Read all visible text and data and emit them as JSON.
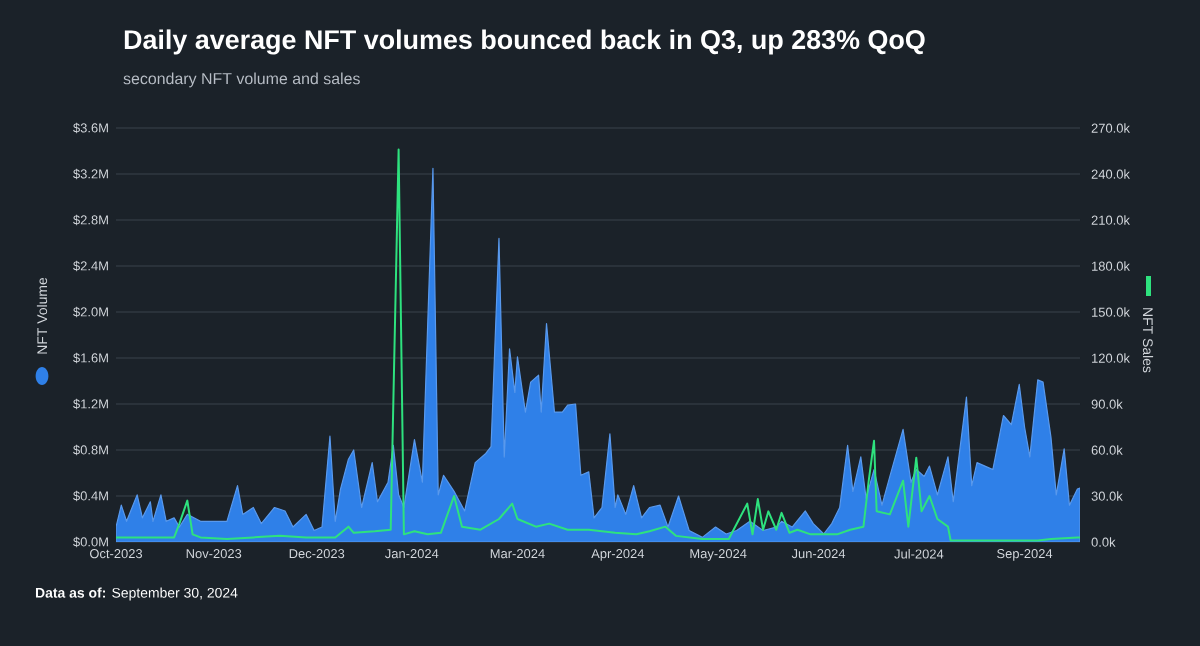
{
  "chart_data": {
    "type": "area",
    "title": "Daily average NFT volumes bounced back in Q3, up 283% QoQ",
    "subtitle": "secondary NFT volume and sales",
    "ylabel": "NFT Volume",
    "y2label": "NFT Sales",
    "annotations": [
      "**Data as of:** September 30, 2024"
    ],
    "grid": "y",
    "xlim": [
      "2023-10-01",
      "2024-09-30"
    ],
    "xticks": [
      {
        "value": "2023-10-01",
        "label": "Oct-2023"
      },
      {
        "value": "2023-11-07",
        "label": "Nov-2023"
      },
      {
        "value": "2023-12-16",
        "label": "Dec-2023"
      },
      {
        "value": "2024-01-21",
        "label": "Jan-2024"
      },
      {
        "value": "2024-03-01",
        "label": "Mar-2024"
      },
      {
        "value": "2024-04-08",
        "label": "Apr-2024"
      },
      {
        "value": "2024-05-16",
        "label": "May-2024"
      },
      {
        "value": "2024-06-23",
        "label": "Jun-2024"
      },
      {
        "value": "2024-07-31",
        "label": "Jul-2024"
      },
      {
        "value": "2024-09-09",
        "label": "Sep-2024"
      }
    ],
    "ylim": [
      0,
      3.6
    ],
    "yticks": [
      {
        "value": 0,
        "label": "$0.0M"
      },
      {
        "value": 0.4,
        "label": "$0.4M"
      },
      {
        "value": 0.8,
        "label": "$0.8M"
      },
      {
        "value": 1.2,
        "label": "$1.2M"
      },
      {
        "value": 1.6,
        "label": "$1.6M"
      },
      {
        "value": 2.0,
        "label": "$2.0M"
      },
      {
        "value": 2.4,
        "label": "$2.4M"
      },
      {
        "value": 2.8,
        "label": "$2.8M"
      },
      {
        "value": 3.2,
        "label": "$3.2M"
      },
      {
        "value": 3.6,
        "label": "$3.6M"
      }
    ],
    "y2lim": [
      0,
      270
    ],
    "y2ticks": [
      {
        "value": 0,
        "label": "0.0k"
      },
      {
        "value": 30,
        "label": "30.0k"
      },
      {
        "value": 60,
        "label": "60.0k"
      },
      {
        "value": 90,
        "label": "90.0k"
      },
      {
        "value": 120,
        "label": "120.0k"
      },
      {
        "value": 150,
        "label": "150.0k"
      },
      {
        "value": 180,
        "label": "180.0k"
      },
      {
        "value": 210,
        "label": "210.0k"
      },
      {
        "value": 240,
        "label": "240.0k"
      },
      {
        "value": 270,
        "label": "270.0k"
      }
    ],
    "series": [
      {
        "color": "#2f80e8",
        "x": [
          "2023-10-01",
          "2023-10-03",
          "2023-10-05",
          "2023-10-09",
          "2023-10-11",
          "2023-10-14",
          "2023-10-15",
          "2023-10-18",
          "2023-10-20",
          "2023-10-23",
          "2023-10-25",
          "2023-10-28",
          "2023-11-02",
          "2023-11-07",
          "2023-11-12",
          "2023-11-16",
          "2023-11-18",
          "2023-11-22",
          "2023-11-25",
          "2023-11-30",
          "2023-12-04",
          "2023-12-07",
          "2023-12-12",
          "2023-12-15",
          "2023-12-18",
          "2023-12-21",
          "2023-12-23",
          "2023-12-25",
          "2023-12-28",
          "2023-12-30",
          "2024-01-02",
          "2024-01-06",
          "2024-01-08",
          "2024-01-12",
          "2024-01-14",
          "2024-01-16",
          "2024-01-18",
          "2024-01-22",
          "2024-01-25",
          "2024-01-29",
          "2024-01-31",
          "2024-02-02",
          "2024-02-06",
          "2024-02-10",
          "2024-02-14",
          "2024-02-18",
          "2024-02-20",
          "2024-02-23",
          "2024-02-25",
          "2024-02-27",
          "2024-02-29",
          "2024-03-01",
          "2024-03-04",
          "2024-03-06",
          "2024-03-09",
          "2024-03-10",
          "2024-03-12",
          "2024-03-15",
          "2024-03-18",
          "2024-03-20",
          "2024-03-23",
          "2024-03-25",
          "2024-03-28",
          "2024-03-30",
          "2024-04-02",
          "2024-04-05",
          "2024-04-07",
          "2024-04-08",
          "2024-04-11",
          "2024-04-14",
          "2024-04-17",
          "2024-04-20",
          "2024-04-24",
          "2024-04-27",
          "2024-05-01",
          "2024-05-05",
          "2024-05-10",
          "2024-05-15",
          "2024-05-19",
          "2024-05-23",
          "2024-05-28",
          "2024-06-02",
          "2024-06-07",
          "2024-06-09",
          "2024-06-13",
          "2024-06-18",
          "2024-06-21",
          "2024-06-25",
          "2024-06-28",
          "2024-07-01",
          "2024-07-04",
          "2024-07-06",
          "2024-07-09",
          "2024-07-11",
          "2024-07-14",
          "2024-07-17",
          "2024-07-20",
          "2024-07-25",
          "2024-07-28",
          "2024-07-30",
          "2024-08-02",
          "2024-08-04",
          "2024-08-07",
          "2024-08-11",
          "2024-08-13",
          "2024-08-18",
          "2024-08-20",
          "2024-08-22",
          "2024-08-25",
          "2024-08-28",
          "2024-09-01",
          "2024-09-04",
          "2024-09-07",
          "2024-09-09",
          "2024-09-11",
          "2024-09-14",
          "2024-09-16",
          "2024-09-19",
          "2024-09-21",
          "2024-09-24",
          "2024-09-26",
          "2024-09-29",
          "2024-09-30"
        ],
        "values": [
          0.13,
          0.32,
          0.18,
          0.41,
          0.21,
          0.35,
          0.18,
          0.41,
          0.18,
          0.21,
          0.13,
          0.24,
          0.18,
          0.18,
          0.18,
          0.49,
          0.24,
          0.3,
          0.16,
          0.3,
          0.27,
          0.13,
          0.24,
          0.1,
          0.13,
          0.92,
          0.18,
          0.46,
          0.72,
          0.8,
          0.3,
          0.69,
          0.35,
          0.52,
          0.84,
          0.41,
          0.3,
          0.89,
          0.52,
          3.25,
          0.41,
          0.58,
          0.44,
          0.27,
          0.69,
          0.77,
          0.83,
          2.64,
          0.74,
          1.68,
          1.3,
          1.61,
          1.13,
          1.39,
          1.45,
          1.13,
          1.9,
          1.13,
          1.13,
          1.19,
          1.2,
          0.58,
          0.61,
          0.21,
          0.3,
          0.94,
          0.3,
          0.41,
          0.24,
          0.49,
          0.21,
          0.3,
          0.32,
          0.13,
          0.4,
          0.1,
          0.04,
          0.13,
          0.07,
          0.1,
          0.18,
          0.1,
          0.13,
          0.18,
          0.13,
          0.27,
          0.16,
          0.07,
          0.16,
          0.3,
          0.84,
          0.44,
          0.74,
          0.38,
          0.63,
          0.32,
          0.57,
          0.98,
          0.52,
          0.63,
          0.57,
          0.66,
          0.41,
          0.74,
          0.35,
          1.26,
          0.49,
          0.69,
          0.66,
          0.63,
          1.1,
          1.02,
          1.37,
          1.0,
          0.74,
          1.41,
          1.39,
          0.91,
          0.41,
          0.81,
          0.32,
          0.46,
          0.47
        ]
      },
      {
        "type": "line",
        "axis": "y2",
        "color": "#2ee27e",
        "x": [
          "2023-10-01",
          "2023-10-23",
          "2023-10-25",
          "2023-10-28",
          "2023-10-30",
          "2023-11-02",
          "2023-11-12",
          "2023-11-22",
          "2023-12-02",
          "2023-12-12",
          "2023-12-23",
          "2023-12-28",
          "2023-12-30",
          "2024-01-07",
          "2024-01-13",
          "2024-01-16",
          "2024-01-18",
          "2024-01-22",
          "2024-01-27",
          "2024-02-01",
          "2024-02-06",
          "2024-02-09",
          "2024-02-16",
          "2024-02-23",
          "2024-02-28",
          "2024-03-01",
          "2024-03-08",
          "2024-03-13",
          "2024-03-20",
          "2024-03-28",
          "2024-04-07",
          "2024-04-15",
          "2024-04-20",
          "2024-04-26",
          "2024-04-30",
          "2024-05-10",
          "2024-05-20",
          "2024-05-27",
          "2024-05-29",
          "2024-05-31",
          "2024-06-02",
          "2024-06-04",
          "2024-06-07",
          "2024-06-09",
          "2024-06-12",
          "2024-06-15",
          "2024-06-20",
          "2024-06-30",
          "2024-07-05",
          "2024-07-10",
          "2024-07-12",
          "2024-07-14",
          "2024-07-15",
          "2024-07-20",
          "2024-07-25",
          "2024-07-27",
          "2024-07-30",
          "2024-08-01",
          "2024-08-04",
          "2024-08-07",
          "2024-08-11",
          "2024-08-12",
          "2024-08-17",
          "2024-08-30",
          "2024-09-14",
          "2024-09-19",
          "2024-09-29",
          "2024-09-30"
        ],
        "values": [
          3,
          3,
          12,
          27,
          5,
          3,
          2,
          3,
          4,
          3,
          3,
          10,
          6,
          7,
          8,
          256,
          5,
          7,
          5,
          6,
          30,
          10,
          8,
          15,
          25,
          15,
          10,
          12,
          8,
          8,
          6,
          5,
          7,
          10,
          4,
          2,
          2,
          25,
          5,
          28,
          8,
          20,
          8,
          19,
          6,
          8,
          5,
          5,
          8,
          10,
          40,
          66,
          20,
          18,
          40,
          10,
          55,
          20,
          30,
          15,
          10,
          1,
          1,
          1,
          1,
          2,
          3,
          3
        ]
      }
    ]
  }
}
